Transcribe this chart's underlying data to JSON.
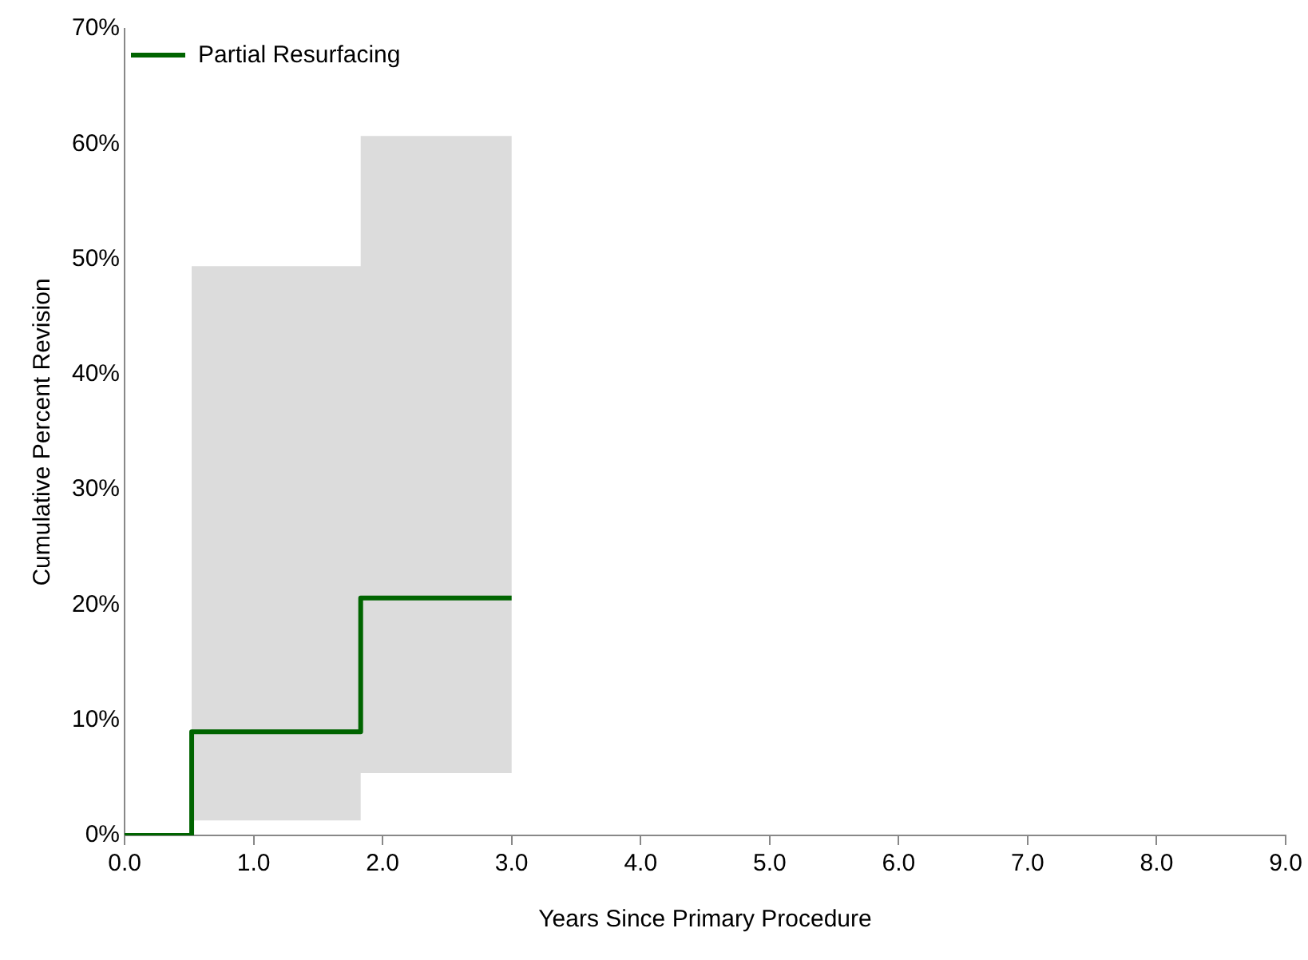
{
  "chart_data": {
    "type": "step",
    "xlabel": "Years Since Primary Procedure",
    "ylabel": "Cumulative Percent Revision",
    "x": [
      0,
      0.52,
      1.83,
      3.0
    ],
    "series": [
      {
        "name": "Partial Resurfacing",
        "color": "#006400",
        "values": [
          0,
          9.0,
          20.6,
          20.6
        ],
        "lower": [
          null,
          1.3,
          5.4,
          5.4
        ],
        "upper": [
          null,
          49.4,
          60.7,
          60.7
        ]
      }
    ],
    "xlim": [
      0,
      9
    ],
    "xticks": [
      {
        "value": 0,
        "label": "0.0"
      },
      {
        "value": 1,
        "label": "1.0"
      },
      {
        "value": 2,
        "label": "2.0"
      },
      {
        "value": 3,
        "label": "3.0"
      },
      {
        "value": 4,
        "label": "4.0"
      },
      {
        "value": 5,
        "label": "5.0"
      },
      {
        "value": 6,
        "label": "6.0"
      },
      {
        "value": 7,
        "label": "7.0"
      },
      {
        "value": 8,
        "label": "8.0"
      },
      {
        "value": 9,
        "label": "9.0"
      }
    ],
    "ylim": [
      0,
      70
    ],
    "yticks": [
      {
        "value": 0,
        "label": "0%"
      },
      {
        "value": 10,
        "label": "10%"
      },
      {
        "value": 20,
        "label": "20%"
      },
      {
        "value": 30,
        "label": "30%"
      },
      {
        "value": 40,
        "label": "40%"
      },
      {
        "value": 50,
        "label": "50%"
      },
      {
        "value": 60,
        "label": "60%"
      },
      {
        "value": 70,
        "label": "70%"
      }
    ],
    "grid": false,
    "legend": "top left",
    "line_style": "solid",
    "marker": "none"
  }
}
